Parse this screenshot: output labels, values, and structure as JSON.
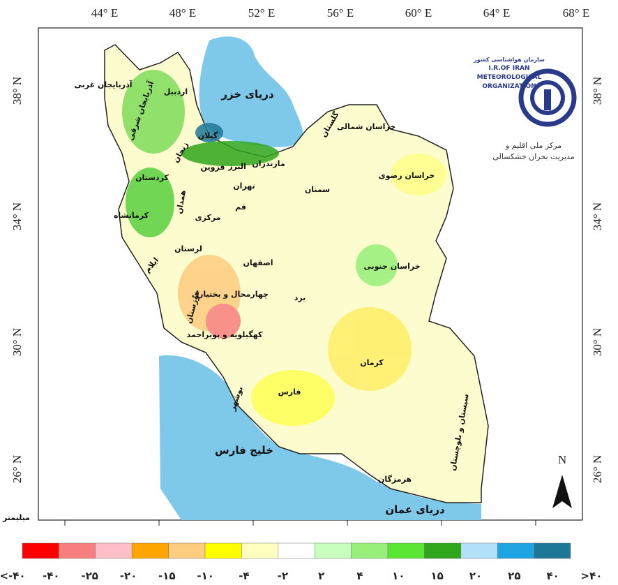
{
  "map": {
    "longitude_labels": [
      "44° E",
      "48° E",
      "52° E",
      "56° E",
      "60° E",
      "64° E",
      "68° E"
    ],
    "latitude_labels": [
      "38° N",
      "34° N",
      "30° N",
      "26° N"
    ],
    "seas": [
      "دریای خزر",
      "خلیج فارس",
      "دریای عمان"
    ],
    "provinces": [
      "آذربایجان غربی",
      "آذربایجان شرقی",
      "اردبیل",
      "گیلان",
      "مازندران",
      "گلستان",
      "خراسان شمالی",
      "خراسان رضوی",
      "سمنان",
      "تهران",
      "قزوین",
      "البرز",
      "زنجان",
      "کردستان",
      "همدان",
      "کرمانشاه",
      "مرکزی",
      "قم",
      "لرستان",
      "ایلام",
      "خوزستان",
      "چهارمحال و بختیاری",
      "اصفهان",
      "کهگیلویه و بویراحمد",
      "بوشهر",
      "فارس",
      "یزد",
      "کرمان",
      "هرمزگان",
      "سیستان و بلوچستان",
      "خراسان جنوبی"
    ],
    "north": "N",
    "unit": "میلیمتر"
  },
  "logo": {
    "fa_name": "سازمان هواشناسی کشور",
    "en_lines": [
      "I.R.OF IRAN",
      "METEOROLOGICAL",
      "ORGANIZATION"
    ],
    "center_lines": [
      "مرکز ملی اقلیم و",
      "مدیریت بحران خشکسالی"
    ]
  },
  "legend": {
    "colors": [
      "#ff0000",
      "#f77f7f",
      "#ffbfc8",
      "#ffa500",
      "#fdcd80",
      "#ffff00",
      "#ffffbf",
      "#ffffff",
      "#c8ffbe",
      "#98f07a",
      "#5ae632",
      "#2fa61c",
      "#b4e1fa",
      "#1ea5e1",
      "#1e7898"
    ],
    "labels": [
      "<-۴۰",
      "-۴۰",
      "-۲۵",
      "-۲۰",
      "-۱۵",
      "-۱۰",
      "-۴",
      "-۲",
      "۲",
      "۴",
      "۱۰",
      "۱۵",
      "۲۰",
      "۲۵",
      "۴۰",
      ">۴۰"
    ]
  }
}
